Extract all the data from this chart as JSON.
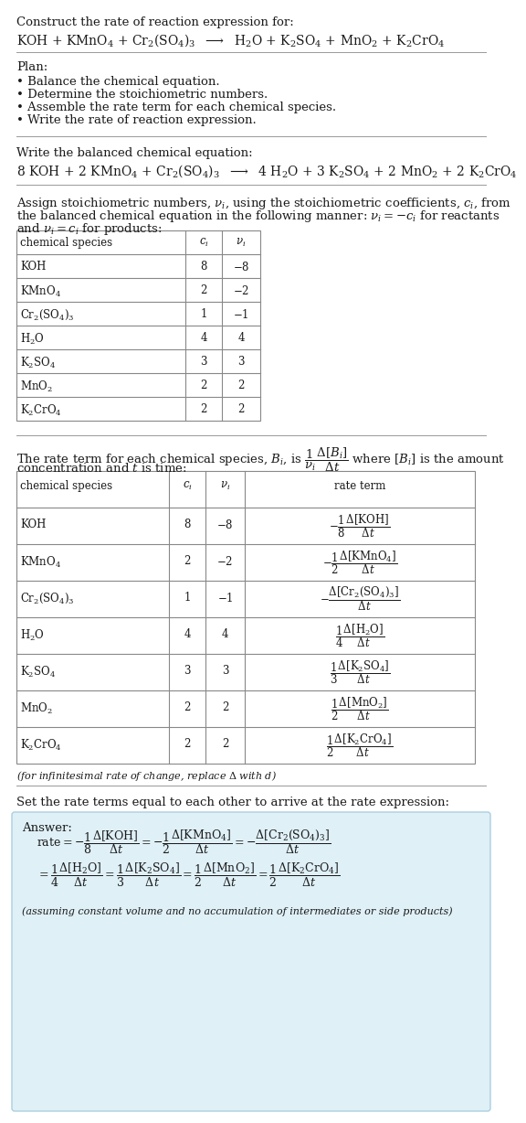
{
  "bg_color": "#ffffff",
  "answer_bg_color": "#dff0f7",
  "answer_border_color": "#aacfe0",
  "title_line1": "Construct the rate of reaction expression for:",
  "reaction_eq": "KOH + KMnO$_4$ + Cr$_2$(SO$_4$)$_3$  $\\longrightarrow$  H$_2$O + K$_2$SO$_4$ + MnO$_2$ + K$_2$CrO$_4$",
  "plan_header": "Plan:",
  "plan_items": [
    "\\textbullet  Balance the chemical equation.",
    "\\textbullet  Determine the stoichiometric numbers.",
    "\\textbullet  Assemble the rate term for each chemical species.",
    "\\textbullet  Write the rate of reaction expression."
  ],
  "balanced_header": "Write the balanced chemical equation:",
  "balanced_eq": "8 KOH + 2 KMnO$_4$ + Cr$_2$(SO$_4$)$_3$  $\\longrightarrow$  4 H$_2$O + 3 K$_2$SO$_4$ + 2 MnO$_2$ + 2 K$_2$CrO$_4$",
  "stoich_intro1": "Assign stoichiometric numbers, $\\nu_i$, using the stoichiometric coefficients, $c_i$, from",
  "stoich_intro2": "the balanced chemical equation in the following manner: $\\nu_i = -c_i$ for reactants",
  "stoich_intro3": "and $\\nu_i = c_i$ for products:",
  "table1_col_headers": [
    "chemical species",
    "$c_i$",
    "$\\nu_i$"
  ],
  "table1_rows": [
    [
      "KOH",
      "8",
      "$-8$"
    ],
    [
      "KMnO$_4$",
      "2",
      "$-2$"
    ],
    [
      "Cr$_2$(SO$_4$)$_3$",
      "1",
      "$-1$"
    ],
    [
      "H$_2$O",
      "4",
      "4"
    ],
    [
      "K$_2$SO$_4$",
      "3",
      "3"
    ],
    [
      "MnO$_2$",
      "2",
      "2"
    ],
    [
      "K$_2$CrO$_4$",
      "2",
      "2"
    ]
  ],
  "rate_intro1": "The rate term for each chemical species, $B_i$, is $\\dfrac{1}{\\nu_i}\\dfrac{\\Delta[B_i]}{\\Delta t}$ where $[B_i]$ is the amount",
  "rate_intro2": "concentration and $t$ is time:",
  "table2_col_headers": [
    "chemical species",
    "$c_i$",
    "$\\nu_i$",
    "rate term"
  ],
  "table2_rows": [
    [
      "KOH",
      "8",
      "$-8$",
      "$-\\dfrac{1}{8}\\dfrac{\\Delta[\\mathrm{KOH}]}{\\Delta t}$"
    ],
    [
      "KMnO$_4$",
      "2",
      "$-2$",
      "$-\\dfrac{1}{2}\\dfrac{\\Delta[\\mathrm{KMnO_4}]}{\\Delta t}$"
    ],
    [
      "Cr$_2$(SO$_4$)$_3$",
      "1",
      "$-1$",
      "$-\\dfrac{\\Delta[\\mathrm{Cr_2(SO_4)_3}]}{\\Delta t}$"
    ],
    [
      "H$_2$O",
      "4",
      "4",
      "$\\dfrac{1}{4}\\dfrac{\\Delta[\\mathrm{H_2O}]}{\\Delta t}$"
    ],
    [
      "K$_2$SO$_4$",
      "3",
      "3",
      "$\\dfrac{1}{3}\\dfrac{\\Delta[\\mathrm{K_2SO_4}]}{\\Delta t}$"
    ],
    [
      "MnO$_2$",
      "2",
      "2",
      "$\\dfrac{1}{2}\\dfrac{\\Delta[\\mathrm{MnO_2}]}{\\Delta t}$"
    ],
    [
      "K$_2$CrO$_4$",
      "2",
      "2",
      "$\\dfrac{1}{2}\\dfrac{\\Delta[\\mathrm{K_2CrO_4}]}{\\Delta t}$"
    ]
  ],
  "infinitesimal_note": "(for infinitesimal rate of change, replace $\\Delta$ with $d$)",
  "set_rate_intro": "Set the rate terms equal to each other to arrive at the rate expression:",
  "answer_label": "Answer:",
  "rate_expr_indent": "    ",
  "rate_line1": "$\\mathrm{rate} = -\\dfrac{1}{8}\\dfrac{\\Delta[\\mathrm{KOH}]}{\\Delta t} = -\\dfrac{1}{2}\\dfrac{\\Delta[\\mathrm{KMnO_4}]}{\\Delta t} = -\\dfrac{\\Delta[\\mathrm{Cr_2(SO_4)_3}]}{\\Delta t}$",
  "rate_line2": "$= \\dfrac{1}{4}\\dfrac{\\Delta[\\mathrm{H_2O}]}{\\Delta t} = \\dfrac{1}{3}\\dfrac{\\Delta[\\mathrm{K_2SO_4}]}{\\Delta t} = \\dfrac{1}{2}\\dfrac{\\Delta[\\mathrm{MnO_2}]}{\\Delta t} = \\dfrac{1}{2}\\dfrac{\\Delta[\\mathrm{K_2CrO_4}]}{\\Delta t}$",
  "answer_footnote": "(assuming constant volume and no accumulation of intermediates or side products)",
  "font_size": 9.5,
  "table_border": "#888888",
  "text_color": "#1a1a1a",
  "sep_line_color": "#999999"
}
